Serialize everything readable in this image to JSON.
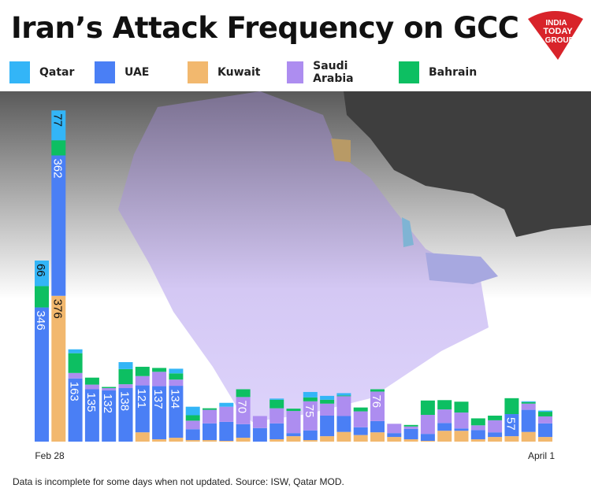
{
  "title": "Iran’s Attack Frequency on GCC",
  "logo_text": "INDIA TODAY GROUP",
  "footer": "Data is incomplete for some days when not updated. Source: ISW, Qatar MOD.",
  "chart_data": {
    "type": "bar",
    "stacked": true,
    "title": "Iran’s Attack Frequency on GCC",
    "legend_placement": "top",
    "x_start_label": "Feb 28",
    "x_end_label": "April 1",
    "bar_count": 31,
    "series": [
      {
        "name": "Kuwait",
        "color": "#f2b86e",
        "values": [
          0,
          376,
          0,
          0,
          0,
          0,
          24,
          6,
          10,
          4,
          4,
          2,
          10,
          0,
          6,
          14,
          4,
          14,
          25,
          17,
          24,
          12,
          6,
          2,
          28,
          28,
          6,
          12,
          14,
          25,
          12
        ]
      },
      {
        "name": "UAE",
        "color": "#4a7ff5",
        "values": [
          346,
          362,
          163,
          135,
          132,
          138,
          121,
          137,
          134,
          28,
          43,
          49,
          35,
          35,
          41,
          8,
          25,
          53,
          41,
          20,
          29,
          10,
          27,
          18,
          20,
          6,
          24,
          12,
          57,
          57,
          35
        ]
      },
      {
        "name": "Saudi Arabia",
        "color": "#ad8df0",
        "values": [
          0,
          0,
          14,
          12,
          6,
          10,
          24,
          37,
          16,
          22,
          35,
          39,
          70,
          31,
          39,
          57,
          75,
          31,
          51,
          41,
          76,
          24,
          6,
          49,
          35,
          41,
          12,
          31,
          0,
          16,
          18
        ]
      },
      {
        "name": "Bahrain",
        "color": "#0dbf62",
        "values": [
          55,
          39,
          51,
          18,
          3,
          39,
          24,
          10,
          16,
          14,
          4,
          0,
          20,
          0,
          22,
          6,
          10,
          10,
          2,
          10,
          6,
          0,
          4,
          37,
          24,
          28,
          18,
          12,
          41,
          4,
          12
        ]
      },
      {
        "name": "Qatar",
        "color": "#33b5f7",
        "values": [
          66,
          77,
          10,
          0,
          0,
          18,
          0,
          0,
          12,
          22,
          0,
          10,
          0,
          0,
          3,
          0,
          14,
          10,
          6,
          0,
          0,
          0,
          0,
          0,
          0,
          0,
          0,
          0,
          0,
          2,
          3
        ]
      }
    ],
    "data_labels": [
      {
        "bar": 0,
        "series": "UAE",
        "text": "346"
      },
      {
        "bar": 0,
        "series": "Qatar",
        "text": "66"
      },
      {
        "bar": 1,
        "series": "Kuwait",
        "text": "376"
      },
      {
        "bar": 1,
        "series": "UAE",
        "text": "362"
      },
      {
        "bar": 1,
        "series": "Qatar",
        "text": "77"
      },
      {
        "bar": 2,
        "series": "UAE",
        "text": "163"
      },
      {
        "bar": 3,
        "series": "UAE",
        "text": "135"
      },
      {
        "bar": 4,
        "series": "UAE",
        "text": "132"
      },
      {
        "bar": 5,
        "series": "UAE",
        "text": "138"
      },
      {
        "bar": 6,
        "series": "UAE",
        "text": "121"
      },
      {
        "bar": 7,
        "series": "UAE",
        "text": "137"
      },
      {
        "bar": 8,
        "series": "UAE",
        "text": "134"
      },
      {
        "bar": 12,
        "series": "Saudi Arabia",
        "text": "70"
      },
      {
        "bar": 16,
        "series": "Saudi Arabia",
        "text": "75"
      },
      {
        "bar": 20,
        "series": "Saudi Arabia",
        "text": "76"
      },
      {
        "bar": 28,
        "series": "UAE",
        "text": "57"
      }
    ],
    "grid": false
  },
  "legend": [
    {
      "label": "Qatar",
      "color": "#33b5f7"
    },
    {
      "label": "UAE",
      "color": "#4a7ff5"
    },
    {
      "label": "Kuwait",
      "color": "#f2b86e"
    },
    {
      "label": "Saudi Arabia",
      "color": "#ad8df0"
    },
    {
      "label": "Bahrain",
      "color": "#0dbf62"
    }
  ]
}
